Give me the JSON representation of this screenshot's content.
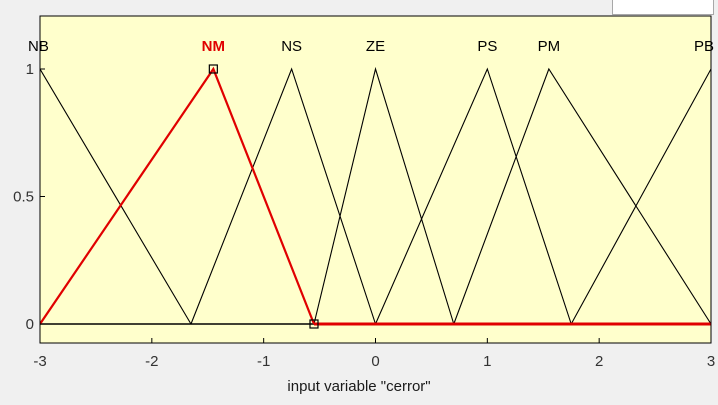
{
  "window": {
    "header_field_value": ""
  },
  "colors": {
    "plot_background": "#ffffcc",
    "plot_border": "#000000",
    "default_mf_line": "#000000",
    "selected_mf_line": "#e00000",
    "tick_label": "#333333",
    "widget_background": "#f0f0f0"
  },
  "chart_data": {
    "type": "line",
    "title": "",
    "xlabel": "input variable \"cerror\"",
    "ylabel": "",
    "xlim": [
      -3,
      3
    ],
    "ylim": [
      0,
      1
    ],
    "xticks": [
      -3,
      -2,
      -1,
      0,
      1,
      2,
      3
    ],
    "yticks": [
      0,
      0.5,
      1
    ],
    "xtick_labels": [
      "-3",
      "-2",
      "-1",
      "0",
      "1",
      "2",
      "3"
    ],
    "ytick_labels": [
      "0",
      "0.5",
      "1"
    ],
    "grid": false,
    "legend": "none",
    "selected_series": "NM",
    "series": [
      {
        "name": "NB",
        "x": [
          -4.5,
          -3.0,
          -1.65
        ],
        "y": [
          0,
          1,
          0
        ]
      },
      {
        "name": "NM",
        "x": [
          -3.0,
          -1.45,
          -0.55
        ],
        "y": [
          0,
          1,
          0
        ]
      },
      {
        "name": "NS",
        "x": [
          -1.65,
          -0.75,
          0.0
        ],
        "y": [
          0,
          1,
          0
        ]
      },
      {
        "name": "ZE",
        "x": [
          -0.55,
          0.0,
          0.7
        ],
        "y": [
          0,
          1,
          0
        ]
      },
      {
        "name": "PS",
        "x": [
          0.0,
          1.0,
          1.75
        ],
        "y": [
          0,
          1,
          0
        ]
      },
      {
        "name": "PM",
        "x": [
          0.7,
          1.55,
          3.0
        ],
        "y": [
          0,
          1,
          0
        ]
      },
      {
        "name": "PB",
        "x": [
          1.75,
          3.0,
          4.25
        ],
        "y": [
          0,
          1,
          0
        ]
      }
    ]
  }
}
